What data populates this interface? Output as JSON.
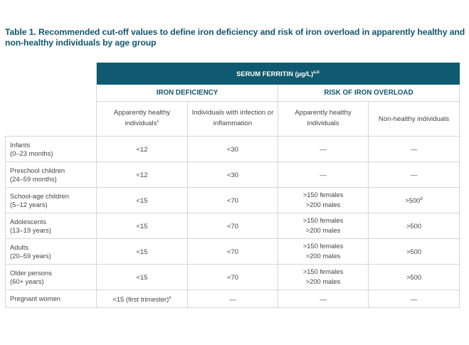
{
  "title": "Table 1. Recommended cut-off values to define iron deficiency and risk of iron overload in apparently healthy and non-healthy individuals by age group",
  "header": {
    "main": "SERUM FERRITIN (µg/L)",
    "main_sup": "a,b",
    "groups": [
      "IRON DEFICIENCY",
      "RISK OF IRON OVERLOAD"
    ],
    "sub": [
      {
        "text": "Apparently healthy individuals",
        "sup": "c"
      },
      {
        "text": "Individuals with infection or inflammation",
        "sup": ""
      },
      {
        "text": "Apparently healthy individuals",
        "sup": ""
      },
      {
        "text": "Non-healthy individuals",
        "sup": ""
      }
    ]
  },
  "rows": [
    {
      "group": "Infants",
      "range": "(0–23 months)",
      "c": [
        "<12",
        "<30",
        "—",
        "—"
      ],
      "sup": [
        "",
        "",
        "",
        ""
      ]
    },
    {
      "group": "Preschool children",
      "range": "(24–59 months)",
      "c": [
        "<12",
        "<30",
        "—",
        "—"
      ],
      "sup": [
        "",
        "",
        "",
        ""
      ]
    },
    {
      "group": "School-age children",
      "range": "(5–12 years)",
      "c": [
        "<15",
        "<70",
        ">150 females\n>200 males",
        ">500"
      ],
      "sup": [
        "",
        "",
        "",
        "d"
      ]
    },
    {
      "group": "Adolescents",
      "range": "(13–19 years)",
      "c": [
        "<15",
        "<70",
        ">150 females\n>200 males",
        ">500"
      ],
      "sup": [
        "",
        "",
        "",
        ""
      ]
    },
    {
      "group": "Adults",
      "range": "(20–59 years)",
      "c": [
        "<15",
        "<70",
        ">150 females\n>200 males",
        ">500"
      ],
      "sup": [
        "",
        "",
        "",
        ""
      ]
    },
    {
      "group": "Older persons",
      "range": "(60+ years)",
      "c": [
        "<15",
        "<70",
        ">150 females\n>200 males",
        ">500"
      ],
      "sup": [
        "",
        "",
        "",
        ""
      ]
    },
    {
      "group": "Pregnant women",
      "range": "",
      "c": [
        "<15 (first trimester)",
        "—",
        "—",
        "—"
      ],
      "sup": [
        "e",
        "",
        "",
        ""
      ]
    }
  ]
}
